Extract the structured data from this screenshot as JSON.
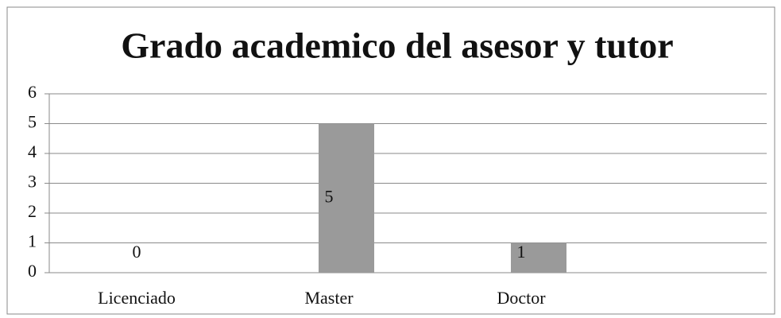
{
  "chart_data": {
    "type": "bar",
    "title": "Grado academico del asesor y tutor",
    "categories": [
      "Licenciado",
      "Master",
      "Doctor"
    ],
    "values": [
      0,
      5,
      1
    ],
    "color": "#9a9a9a",
    "ylim": [
      0,
      6
    ],
    "yticks": [
      0,
      1,
      2,
      3,
      4,
      5,
      6
    ],
    "grid": true
  }
}
